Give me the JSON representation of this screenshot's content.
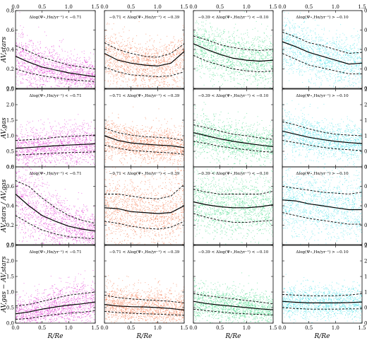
{
  "chart_data": {
    "type": "scatter",
    "layout": "4x4 grid of panels",
    "colors": [
      "#e020d0",
      "#f26a3a",
      "#2ed67a",
      "#3ee0e8"
    ],
    "columns": [
      {
        "label": "Δlog(Ψ⋆,Hα/yr⁻¹) < −0.71"
      },
      {
        "label": "−0.71 < Δlog(Ψ⋆,Hα/yr⁻¹) < −0.39"
      },
      {
        "label": "−0.39 < Δlog(Ψ⋆,Hα/yr⁻¹) < −0.10"
      },
      {
        "label": "Δlog(Ψ⋆,Hα/yr⁻¹) > −0.10"
      }
    ],
    "xlabel": "R/Re",
    "xlim": [
      0,
      1.5
    ],
    "xticks": [
      "0.0",
      "0.5",
      "1.0",
      "1.5"
    ],
    "x": [
      0.0,
      0.25,
      0.5,
      0.75,
      1.0,
      1.25,
      1.5
    ],
    "rows": [
      {
        "ylabel": "AV,stars",
        "ylim": [
          0,
          0.8
        ],
        "yticks": [
          "0.0",
          "0.2",
          "0.4",
          "0.6",
          "0.8"
        ],
        "panels": [
          {
            "median": [
              0.33,
              0.27,
              0.22,
              0.19,
              0.16,
              0.14,
              0.12
            ],
            "p16": [
              0.2,
              0.16,
              0.13,
              0.11,
              0.09,
              0.08,
              0.07
            ],
            "p84": [
              0.44,
              0.38,
              0.32,
              0.28,
              0.24,
              0.22,
              0.2
            ]
          },
          {
            "median": [
              0.36,
              0.29,
              0.26,
              0.24,
              0.23,
              0.26,
              0.38
            ],
            "p16": [
              0.22,
              0.17,
              0.14,
              0.13,
              0.12,
              0.13,
              0.17
            ],
            "p84": [
              0.47,
              0.4,
              0.36,
              0.33,
              0.32,
              0.36,
              0.46
            ]
          },
          {
            "median": [
              0.46,
              0.4,
              0.35,
              0.31,
              0.29,
              0.28,
              0.29
            ],
            "p16": [
              0.34,
              0.28,
              0.24,
              0.2,
              0.18,
              0.17,
              0.18
            ],
            "p84": [
              0.54,
              0.5,
              0.45,
              0.42,
              0.4,
              0.39,
              0.4
            ]
          },
          {
            "median": [
              0.48,
              0.43,
              0.37,
              0.33,
              0.29,
              0.25,
              0.26
            ],
            "p16": [
              0.36,
              0.3,
              0.24,
              0.21,
              0.18,
              0.15,
              0.15
            ],
            "p84": [
              0.58,
              0.53,
              0.47,
              0.44,
              0.4,
              0.36,
              0.37
            ]
          }
        ]
      },
      {
        "ylabel": "AV,gas",
        "ylim": [
          0,
          2.5
        ],
        "yticks": [
          "0.0",
          "0.5",
          "1.0",
          "1.5",
          "2.0",
          "2.5"
        ],
        "panels": [
          {
            "median": [
              0.6,
              0.62,
              0.65,
              0.68,
              0.7,
              0.72,
              0.74
            ],
            "p16": [
              0.38,
              0.4,
              0.42,
              0.44,
              0.46,
              0.47,
              0.48
            ],
            "p84": [
              0.85,
              0.87,
              0.9,
              0.95,
              0.98,
              1.0,
              1.02
            ]
          },
          {
            "median": [
              1.0,
              0.85,
              0.77,
              0.73,
              0.7,
              0.68,
              0.62
            ],
            "p16": [
              0.7,
              0.6,
              0.53,
              0.5,
              0.47,
              0.45,
              0.4
            ],
            "p84": [
              1.25,
              1.1,
              1.02,
              0.97,
              0.95,
              0.92,
              0.85
            ]
          },
          {
            "median": [
              1.1,
              1.0,
              0.9,
              0.82,
              0.76,
              0.7,
              0.65
            ],
            "p16": [
              0.82,
              0.75,
              0.66,
              0.6,
              0.55,
              0.5,
              0.47
            ],
            "p84": [
              1.35,
              1.26,
              1.15,
              1.05,
              1.0,
              0.93,
              0.88
            ]
          },
          {
            "median": [
              1.15,
              1.05,
              0.95,
              0.88,
              0.82,
              0.78,
              0.75
            ],
            "p16": [
              0.85,
              0.78,
              0.7,
              0.63,
              0.58,
              0.55,
              0.52
            ],
            "p84": [
              1.45,
              1.35,
              1.22,
              1.12,
              1.05,
              1.02,
              1.0
            ]
          }
        ]
      },
      {
        "ylabel": "AV,stars / AV,gas",
        "ylim": [
          0,
          0.8
        ],
        "yticks": [
          "0.0",
          "0.2",
          "0.4",
          "0.6",
          "0.8"
        ],
        "panels": [
          {
            "median": [
              0.52,
              0.4,
              0.3,
              0.24,
              0.19,
              0.16,
              0.14
            ],
            "p16": [
              0.3,
              0.22,
              0.15,
              0.11,
              0.08,
              0.07,
              0.06
            ],
            "p84": [
              0.66,
              0.6,
              0.48,
              0.38,
              0.3,
              0.25,
              0.22
            ]
          },
          {
            "median": [
              0.38,
              0.37,
              0.34,
              0.33,
              0.32,
              0.33,
              0.4
            ],
            "p16": [
              0.24,
              0.22,
              0.19,
              0.17,
              0.16,
              0.18,
              0.24
            ],
            "p84": [
              0.52,
              0.52,
              0.5,
              0.48,
              0.47,
              0.5,
              0.62
            ]
          },
          {
            "median": [
              0.44,
              0.41,
              0.39,
              0.38,
              0.38,
              0.39,
              0.41
            ],
            "p16": [
              0.32,
              0.28,
              0.25,
              0.23,
              0.23,
              0.24,
              0.25
            ],
            "p84": [
              0.57,
              0.54,
              0.52,
              0.52,
              0.52,
              0.52,
              0.55
            ]
          },
          {
            "median": [
              0.46,
              0.45,
              0.42,
              0.4,
              0.38,
              0.36,
              0.36
            ],
            "p16": [
              0.33,
              0.3,
              0.27,
              0.25,
              0.23,
              0.21,
              0.21
            ],
            "p84": [
              0.6,
              0.58,
              0.56,
              0.54,
              0.53,
              0.52,
              0.54
            ]
          }
        ]
      },
      {
        "ylabel": "AV,gas − AV,stars",
        "ylim": [
          0,
          2.5
        ],
        "yticks": [
          "0.0",
          "0.5",
          "1.0",
          "1.5",
          "2.0",
          "2.5"
        ],
        "panels": [
          {
            "median": [
              0.3,
              0.36,
              0.45,
              0.52,
              0.58,
              0.62,
              0.68
            ],
            "p16": [
              0.12,
              0.15,
              0.22,
              0.28,
              0.32,
              0.35,
              0.4
            ],
            "p84": [
              0.55,
              0.6,
              0.7,
              0.8,
              0.9,
              0.95,
              1.0
            ]
          },
          {
            "median": [
              0.6,
              0.55,
              0.53,
              0.52,
              0.5,
              0.47,
              0.42
            ],
            "p16": [
              0.38,
              0.34,
              0.32,
              0.3,
              0.29,
              0.27,
              0.25
            ],
            "p84": [
              0.9,
              0.82,
              0.78,
              0.75,
              0.73,
              0.7,
              0.65
            ]
          },
          {
            "median": [
              0.7,
              0.63,
              0.58,
              0.54,
              0.5,
              0.46,
              0.43
            ],
            "p16": [
              0.45,
              0.4,
              0.36,
              0.32,
              0.3,
              0.28,
              0.26
            ],
            "p84": [
              0.95,
              0.88,
              0.83,
              0.78,
              0.73,
              0.68,
              0.62
            ]
          },
          {
            "median": [
              0.7,
              0.67,
              0.65,
              0.65,
              0.65,
              0.66,
              0.68
            ],
            "p16": [
              0.5,
              0.47,
              0.45,
              0.45,
              0.45,
              0.46,
              0.46
            ],
            "p84": [
              0.92,
              0.9,
              0.88,
              0.88,
              0.88,
              0.9,
              0.95
            ]
          }
        ]
      }
    ]
  }
}
